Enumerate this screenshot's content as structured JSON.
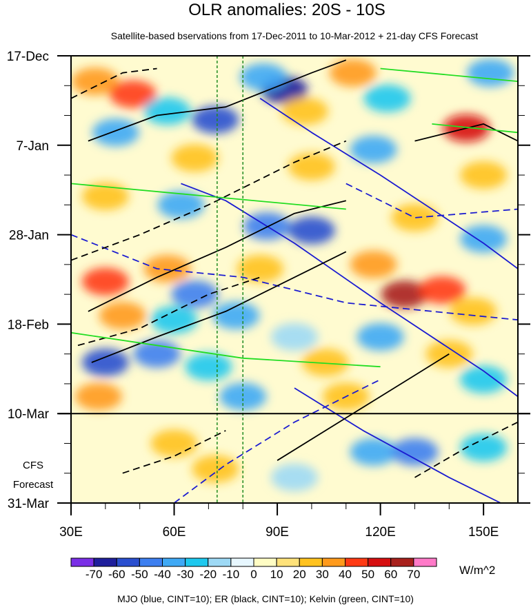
{
  "chart_data": {
    "type": "heatmap",
    "title": "OLR anomalies: 20S - 10S",
    "subtitle": "Satellite-based bservations from 17-Dec-2011 to 10-Mar-2012 + 21-day CFS Forecast",
    "x_axis": {
      "range": [
        30,
        160
      ],
      "ticks": [
        {
          "value": 30,
          "label": "30E"
        },
        {
          "value": 60,
          "label": "60E"
        },
        {
          "value": 90,
          "label": "90E"
        },
        {
          "value": 120,
          "label": "120E"
        },
        {
          "value": 150,
          "label": "150E"
        }
      ]
    },
    "y_axis": {
      "unit": "days since 17-Dec-2011 (downward)",
      "range": [
        0,
        105
      ],
      "ticks": [
        {
          "value": 0,
          "label": "17-Dec"
        },
        {
          "value": 21,
          "label": "7-Jan"
        },
        {
          "value": 42,
          "label": "28-Jan"
        },
        {
          "value": 63,
          "label": "18-Feb"
        },
        {
          "value": 84,
          "label": "10-Mar"
        },
        {
          "value": 105,
          "label": "31-Mar"
        }
      ]
    },
    "forecast_start_day": 84,
    "forecast_label_line1": "CFS",
    "forecast_label_line2": "Forecast",
    "reference_longitudes": [
      72.5,
      80
    ],
    "colorbar": {
      "unit": "W/m^2",
      "levels": [
        "-70",
        "-60",
        "-50",
        "-40",
        "-30",
        "-20",
        "-10",
        "0",
        "10",
        "20",
        "30",
        "40",
        "50",
        "60",
        "70"
      ],
      "colors": [
        "#7a2fe6",
        "#1f1f9c",
        "#2a4fcf",
        "#3d7ff0",
        "#3fa9f5",
        "#1ec8ee",
        "#9dd9f5",
        "#e7f7ff",
        "#fffdc4",
        "#ffe27a",
        "#ffc21f",
        "#ff9a1c",
        "#ff3a14",
        "#d60f10",
        "#a8201c",
        "#ff7ac8"
      ]
    },
    "anomaly_blobs": [
      {
        "lon": 37,
        "day": 6,
        "value": 35
      },
      {
        "lon": 48,
        "day": 9,
        "value": 45
      },
      {
        "lon": 43,
        "day": 18,
        "value": -40
      },
      {
        "lon": 58,
        "day": 13,
        "value": -30
      },
      {
        "lon": 72,
        "day": 15,
        "value": -60
      },
      {
        "lon": 92,
        "day": 8,
        "value": -70
      },
      {
        "lon": 86,
        "day": 5,
        "value": -40
      },
      {
        "lon": 98,
        "day": 13,
        "value": 25
      },
      {
        "lon": 112,
        "day": 4,
        "value": 30
      },
      {
        "lon": 122,
        "day": 10,
        "value": -30
      },
      {
        "lon": 145,
        "day": 17,
        "value": 55
      },
      {
        "lon": 152,
        "day": 4,
        "value": -40
      },
      {
        "lon": 66,
        "day": 24,
        "value": 20
      },
      {
        "lon": 100,
        "day": 26,
        "value": 20
      },
      {
        "lon": 118,
        "day": 22,
        "value": -40
      },
      {
        "lon": 150,
        "day": 28,
        "value": 20
      },
      {
        "lon": 40,
        "day": 33,
        "value": 20
      },
      {
        "lon": 62,
        "day": 35,
        "value": -40
      },
      {
        "lon": 87,
        "day": 40,
        "value": -50
      },
      {
        "lon": 100,
        "day": 41,
        "value": -60
      },
      {
        "lon": 130,
        "day": 38,
        "value": 20
      },
      {
        "lon": 150,
        "day": 43,
        "value": -35
      },
      {
        "lon": 40,
        "day": 53,
        "value": 40
      },
      {
        "lon": 58,
        "day": 50,
        "value": 30
      },
      {
        "lon": 66,
        "day": 56,
        "value": -45
      },
      {
        "lon": 85,
        "day": 50,
        "value": 20
      },
      {
        "lon": 118,
        "day": 49,
        "value": 30
      },
      {
        "lon": 127,
        "day": 56,
        "value": 65
      },
      {
        "lon": 138,
        "day": 55,
        "value": 40
      },
      {
        "lon": 147,
        "day": 60,
        "value": 20
      },
      {
        "lon": 45,
        "day": 61,
        "value": 35
      },
      {
        "lon": 60,
        "day": 62,
        "value": -30
      },
      {
        "lon": 78,
        "day": 61,
        "value": -40
      },
      {
        "lon": 40,
        "day": 72,
        "value": -60
      },
      {
        "lon": 55,
        "day": 70,
        "value": -50
      },
      {
        "lon": 70,
        "day": 73,
        "value": -30
      },
      {
        "lon": 95,
        "day": 66,
        "value": -20
      },
      {
        "lon": 104,
        "day": 72,
        "value": 20
      },
      {
        "lon": 120,
        "day": 66,
        "value": -40
      },
      {
        "lon": 140,
        "day": 70,
        "value": 25
      },
      {
        "lon": 150,
        "day": 76,
        "value": -30
      },
      {
        "lon": 38,
        "day": 80,
        "value": 30
      },
      {
        "lon": 80,
        "day": 80,
        "value": -40
      },
      {
        "lon": 110,
        "day": 80,
        "value": 20
      },
      {
        "lon": 60,
        "day": 91,
        "value": 25
      },
      {
        "lon": 72,
        "day": 97,
        "value": 20
      },
      {
        "lon": 118,
        "day": 93,
        "value": -35
      },
      {
        "lon": 130,
        "day": 93,
        "value": -50
      },
      {
        "lon": 150,
        "day": 92,
        "value": -30
      },
      {
        "lon": 95,
        "day": 99,
        "value": -15
      }
    ],
    "contour_series": [
      {
        "name": "MJO",
        "color": "#1b1bd0",
        "interval": 10,
        "lines": [
          {
            "dashed": false,
            "points": [
              [
                62,
                30
              ],
              [
                75,
                34
              ],
              [
                95,
                44
              ],
              [
                120,
                58
              ],
              [
                150,
                74
              ],
              [
                160,
                80
              ]
            ]
          },
          {
            "dashed": false,
            "points": [
              [
                85,
                10
              ],
              [
                100,
                18
              ],
              [
                120,
                28
              ],
              [
                150,
                44
              ],
              [
                160,
                50
              ]
            ]
          },
          {
            "dashed": false,
            "points": [
              [
                95,
                78
              ],
              [
                115,
                88
              ],
              [
                140,
                99
              ],
              [
                155,
                105
              ]
            ]
          },
          {
            "dashed": true,
            "points": [
              [
                30,
                42
              ],
              [
                55,
                50
              ],
              [
                80,
                52
              ],
              [
                110,
                58
              ],
              [
                160,
                62
              ]
            ]
          },
          {
            "dashed": true,
            "points": [
              [
                60,
                105
              ],
              [
                75,
                96
              ],
              [
                95,
                86
              ],
              [
                120,
                76
              ]
            ]
          },
          {
            "dashed": true,
            "points": [
              [
                110,
                30
              ],
              [
                130,
                38
              ],
              [
                160,
                36
              ]
            ]
          }
        ]
      },
      {
        "name": "ER",
        "color": "#000000",
        "interval": 10,
        "lines": [
          {
            "dashed": false,
            "points": [
              [
                35,
                20
              ],
              [
                55,
                14
              ],
              [
                75,
                12
              ],
              [
                100,
                4
              ],
              [
                110,
                1
              ]
            ]
          },
          {
            "dashed": false,
            "points": [
              [
                35,
                60
              ],
              [
                55,
                52
              ],
              [
                75,
                45
              ],
              [
                95,
                37
              ],
              [
                110,
                34
              ]
            ]
          },
          {
            "dashed": false,
            "points": [
              [
                36,
                72
              ],
              [
                55,
                66
              ],
              [
                75,
                60
              ],
              [
                95,
                52
              ],
              [
                110,
                46
              ]
            ]
          },
          {
            "dashed": false,
            "points": [
              [
                90,
                95
              ],
              [
                110,
                85
              ],
              [
                130,
                75
              ],
              [
                140,
                70
              ]
            ]
          },
          {
            "dashed": false,
            "points": [
              [
                130,
                20
              ],
              [
                140,
                18
              ],
              [
                150,
                16
              ],
              [
                160,
                20
              ]
            ]
          },
          {
            "dashed": true,
            "points": [
              [
                30,
                10
              ],
              [
                45,
                4
              ],
              [
                55,
                3
              ]
            ]
          },
          {
            "dashed": true,
            "points": [
              [
                30,
                48
              ],
              [
                50,
                42
              ],
              [
                70,
                35
              ],
              [
                95,
                25
              ],
              [
                110,
                20
              ]
            ]
          },
          {
            "dashed": true,
            "points": [
              [
                32,
                68
              ],
              [
                50,
                64
              ],
              [
                70,
                56
              ],
              [
                85,
                52
              ]
            ]
          },
          {
            "dashed": true,
            "points": [
              [
                45,
                98
              ],
              [
                60,
                94
              ],
              [
                75,
                88
              ]
            ]
          },
          {
            "dashed": true,
            "points": [
              [
                130,
                99
              ],
              [
                145,
                92
              ],
              [
                160,
                86
              ]
            ]
          }
        ]
      },
      {
        "name": "Kelvin",
        "color": "#22dd22",
        "interval": 10,
        "lines": [
          {
            "dashed": false,
            "points": [
              [
                30,
                30
              ],
              [
                70,
                33
              ],
              [
                110,
                36
              ]
            ]
          },
          {
            "dashed": false,
            "points": [
              [
                30,
                65
              ],
              [
                80,
                71
              ],
              [
                120,
                73
              ]
            ]
          },
          {
            "dashed": false,
            "points": [
              [
                120,
                3
              ],
              [
                160,
                6
              ]
            ]
          },
          {
            "dashed": false,
            "points": [
              [
                135,
                16
              ],
              [
                160,
                18
              ]
            ]
          }
        ]
      }
    ],
    "footnote": "MJO (blue, CINT=10); ER (black, CINT=10); Kelvin (green, CINT=10)"
  }
}
